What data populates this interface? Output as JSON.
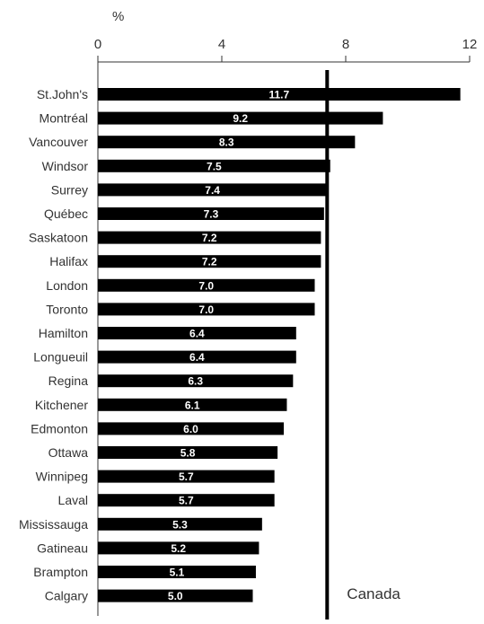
{
  "chart_data": {
    "type": "bar",
    "orientation": "horizontal",
    "unit_label": "%",
    "categories": [
      "St.John's",
      "Montréal",
      "Vancouver",
      "Windsor",
      "Surrey",
      "Québec",
      "Saskatoon",
      "Halifax",
      "London",
      "Toronto",
      "Hamilton",
      "Longueuil",
      "Regina",
      "Kitchener",
      "Edmonton",
      "Ottawa",
      "Winnipeg",
      "Laval",
      "Mississauga",
      "Gatineau",
      "Brampton",
      "Calgary"
    ],
    "values": [
      11.7,
      9.2,
      8.3,
      7.5,
      7.4,
      7.3,
      7.2,
      7.2,
      7.0,
      7.0,
      6.4,
      6.4,
      6.3,
      6.1,
      6.0,
      5.8,
      5.7,
      5.7,
      5.3,
      5.2,
      5.1,
      5.0
    ],
    "value_labels": [
      "11.7",
      "9.2",
      "8.3",
      "7.5",
      "7.4",
      "7.3",
      "7.2",
      "7.2",
      "7.0",
      "7.0",
      "6.4",
      "6.4",
      "6.3",
      "6.1",
      "6.0",
      "5.8",
      "5.7",
      "5.7",
      "5.3",
      "5.2",
      "5.1",
      "5.0"
    ],
    "xlim": [
      0,
      12
    ],
    "x_ticks": [
      0,
      4,
      8,
      12
    ],
    "x_tick_labels": [
      "0",
      "4",
      "8",
      "12"
    ],
    "x_axis_position": "top",
    "reference_line": {
      "label": "Canada",
      "value": 7.4
    },
    "bar_color": "#000000",
    "bar_label_color": "#ffffff",
    "grid": false
  }
}
